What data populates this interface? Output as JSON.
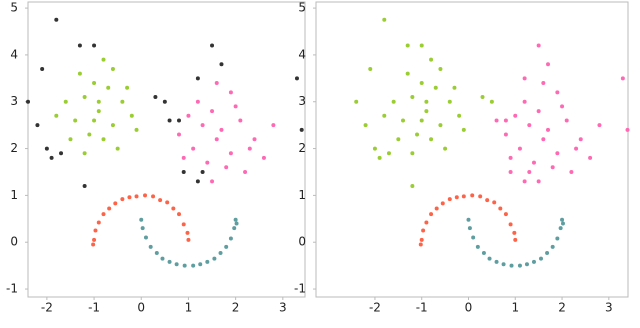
{
  "chart_data": [
    {
      "type": "scatter",
      "xlim": [
        -2.4,
        3.47
      ],
      "ylim": [
        -1.17,
        5.13
      ],
      "xticks": [
        -2,
        -1,
        0,
        1,
        2,
        3
      ],
      "yticks": [
        -1,
        0,
        1,
        2,
        3,
        4,
        5
      ],
      "series": [
        {
          "color": "#9acd32",
          "x": [
            -0.9,
            -1.2,
            -0.6,
            -1.4,
            -0.4,
            -1.0,
            -0.8,
            -1.6,
            -0.2,
            -1.1,
            -0.7,
            -1.3,
            -0.5,
            -1.8,
            -0.9,
            -0.3,
            -1.5,
            -0.6,
            -1.0,
            -0.1,
            -1.2,
            -0.8
          ],
          "values": [
            2.8,
            3.1,
            2.5,
            2.6,
            3.0,
            3.4,
            2.2,
            3.0,
            2.7,
            2.3,
            3.3,
            3.6,
            2.0,
            2.7,
            3.0,
            3.3,
            2.2,
            3.7,
            2.6,
            2.4,
            1.9,
            3.9
          ]
        },
        {
          "color": "#ff69b4",
          "x": [
            1.6,
            1.3,
            1.9,
            1.1,
            2.1,
            1.5,
            1.8,
            0.8,
            2.4,
            1.4,
            2.0,
            1.2,
            1.7,
            2.6,
            1.0,
            2.2,
            1.5,
            2.8,
            1.9,
            0.9,
            2.3,
            1.6
          ],
          "values": [
            2.2,
            2.5,
            1.9,
            2.0,
            2.6,
            2.8,
            1.6,
            2.3,
            2.2,
            1.7,
            2.9,
            3.0,
            2.4,
            1.8,
            2.7,
            1.5,
            1.3,
            2.5,
            3.2,
            1.8,
            2.0,
            3.4
          ]
        },
        {
          "color": "#ff6347",
          "x": [
            1.0,
            0.98,
            0.9,
            0.8,
            0.68,
            0.55,
            0.4,
            0.25,
            0.08,
            -0.1,
            -0.25,
            -0.4,
            -0.55,
            -0.68,
            -0.8,
            -0.9,
            -0.97,
            -1.0,
            -1.02
          ],
          "values": [
            0.05,
            0.2,
            0.38,
            0.6,
            0.72,
            0.85,
            0.9,
            0.98,
            1.0,
            0.98,
            0.96,
            0.92,
            0.83,
            0.72,
            0.6,
            0.42,
            0.25,
            0.05,
            -0.05
          ]
        },
        {
          "color": "#5f9ea0",
          "x": [
            0.0,
            0.03,
            0.1,
            0.2,
            0.33,
            0.45,
            0.6,
            0.75,
            0.92,
            1.1,
            1.25,
            1.4,
            1.55,
            1.68,
            1.8,
            1.9,
            1.97,
            2.0,
            2.02
          ],
          "values": [
            0.48,
            0.3,
            0.1,
            -0.1,
            -0.23,
            -0.35,
            -0.42,
            -0.47,
            -0.5,
            -0.5,
            -0.47,
            -0.42,
            -0.35,
            -0.23,
            -0.1,
            0.08,
            0.3,
            0.48,
            0.4
          ]
        },
        {
          "color": "#333333",
          "x": [
            -1.8,
            -1.3,
            -1.0,
            -2.1,
            -2.4,
            -2.2,
            -2.0,
            -1.9,
            -1.7,
            -1.2,
            0.3,
            0.5,
            0.8,
            0.6,
            1.5,
            1.7,
            1.2,
            3.3,
            3.4,
            1.2,
            1.3,
            0.9
          ],
          "values": [
            4.75,
            4.2,
            4.2,
            3.7,
            3.0,
            2.5,
            2.0,
            1.8,
            1.9,
            1.2,
            3.1,
            3.0,
            2.6,
            2.6,
            4.2,
            3.8,
            3.5,
            3.5,
            2.4,
            1.3,
            1.5,
            1.5
          ]
        }
      ]
    },
    {
      "type": "scatter",
      "xlim": [
        -3.26,
        3.41
      ],
      "ylim": [
        -1.17,
        5.13
      ],
      "xticks": [
        -2,
        -1,
        0,
        1,
        2,
        3
      ],
      "yticks": [
        -1,
        0,
        1,
        2,
        3,
        4,
        5
      ],
      "series": [
        {
          "color": "#9acd32",
          "x": [
            -0.9,
            -1.2,
            -0.6,
            -1.4,
            -0.4,
            -1.0,
            -0.8,
            -1.6,
            -0.2,
            -1.1,
            -0.7,
            -1.3,
            -0.5,
            -1.8,
            -0.9,
            -0.3,
            -1.5,
            -0.6,
            -1.0,
            -0.1,
            -1.2,
            -0.8,
            -1.8,
            -1.3,
            -1.0,
            -2.1,
            -2.4,
            -2.2,
            -2.0,
            -1.9,
            -1.7,
            -1.2,
            0.3,
            0.5
          ],
          "values": [
            2.8,
            3.1,
            2.5,
            2.6,
            3.0,
            3.4,
            2.2,
            3.0,
            2.7,
            2.3,
            3.3,
            3.6,
            2.0,
            2.7,
            3.0,
            3.3,
            2.2,
            3.7,
            2.6,
            2.4,
            1.9,
            3.9,
            4.75,
            4.2,
            4.2,
            3.7,
            3.0,
            2.5,
            2.0,
            1.8,
            1.9,
            1.2,
            3.1,
            3.0
          ]
        },
        {
          "color": "#ff69b4",
          "x": [
            1.6,
            1.3,
            1.9,
            1.1,
            2.1,
            1.5,
            1.8,
            0.8,
            2.4,
            1.4,
            2.0,
            1.2,
            1.7,
            2.6,
            1.0,
            2.2,
            1.5,
            2.8,
            1.9,
            0.9,
            2.3,
            1.6,
            0.8,
            0.6,
            1.5,
            1.7,
            1.2,
            3.3,
            3.4,
            1.2,
            1.3,
            0.9
          ],
          "values": [
            2.2,
            2.5,
            1.9,
            2.0,
            2.6,
            2.8,
            1.6,
            2.3,
            2.2,
            1.7,
            2.9,
            3.0,
            2.4,
            1.8,
            2.7,
            1.5,
            1.3,
            2.5,
            3.2,
            1.8,
            2.0,
            3.4,
            2.6,
            2.6,
            4.2,
            3.8,
            3.5,
            3.5,
            2.4,
            1.3,
            1.5,
            1.5
          ]
        },
        {
          "color": "#ff6347",
          "x": [
            1.0,
            0.98,
            0.9,
            0.8,
            0.68,
            0.55,
            0.4,
            0.25,
            0.08,
            -0.1,
            -0.25,
            -0.4,
            -0.55,
            -0.68,
            -0.8,
            -0.9,
            -0.97,
            -1.0,
            -1.02
          ],
          "values": [
            0.05,
            0.2,
            0.38,
            0.6,
            0.72,
            0.85,
            0.9,
            0.98,
            1.0,
            0.98,
            0.96,
            0.92,
            0.83,
            0.72,
            0.6,
            0.42,
            0.25,
            0.05,
            -0.05
          ]
        },
        {
          "color": "#5f9ea0",
          "x": [
            0.0,
            0.03,
            0.1,
            0.2,
            0.33,
            0.45,
            0.6,
            0.75,
            0.92,
            1.1,
            1.25,
            1.4,
            1.55,
            1.68,
            1.8,
            1.9,
            1.97,
            2.0,
            2.02
          ],
          "values": [
            0.48,
            0.3,
            0.1,
            -0.1,
            -0.23,
            -0.35,
            -0.42,
            -0.47,
            -0.5,
            -0.5,
            -0.47,
            -0.42,
            -0.35,
            -0.23,
            -0.1,
            0.08,
            0.3,
            0.48,
            0.4
          ]
        }
      ]
    }
  ]
}
